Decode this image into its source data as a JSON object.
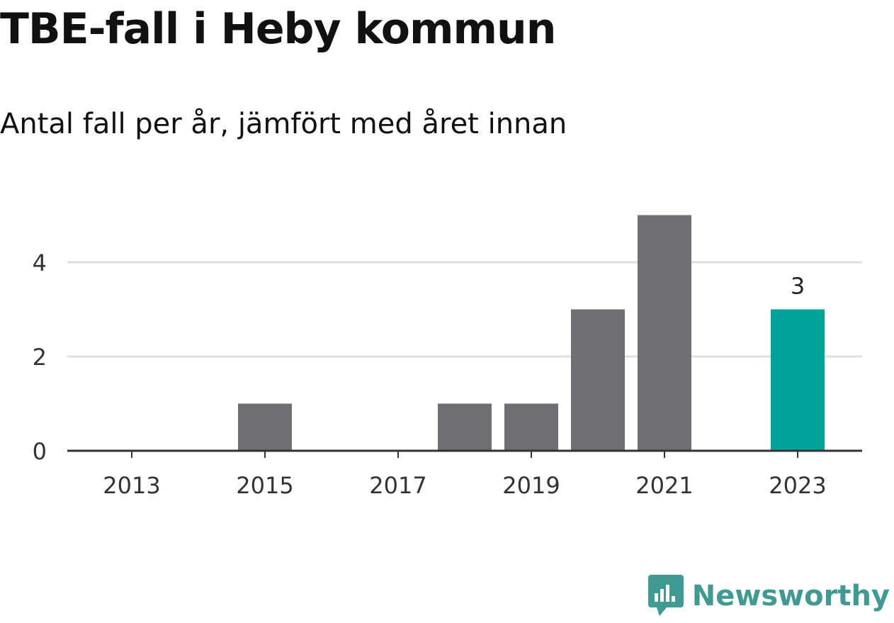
{
  "title": "TBE-fall i Heby kommun",
  "subtitle": "Antal fall per år, jämfört med året innan",
  "brand": {
    "name": "Newsworthy",
    "logo_icon": "chart-speech-bubble-icon",
    "color": "#3f9a94"
  },
  "chart_data": {
    "type": "bar",
    "title": "TBE-fall i Heby kommun",
    "subtitle": "Antal fall per år, jämfört med året innan",
    "xlabel": "",
    "ylabel": "",
    "categories": [
      2013,
      2014,
      2015,
      2016,
      2017,
      2018,
      2019,
      2020,
      2021,
      2022,
      2023
    ],
    "values": [
      0,
      0,
      1,
      0,
      0,
      1,
      1,
      3,
      5,
      0,
      3
    ],
    "x_ticks": [
      "2013",
      "2015",
      "2017",
      "2019",
      "2021",
      "2023"
    ],
    "y_ticks": [
      0,
      2,
      4
    ],
    "ylim": [
      0,
      5
    ],
    "grid": "horizontal",
    "highlight": {
      "category": 2023,
      "label": "3"
    },
    "colors": {
      "bar": "#6f6e73",
      "highlight": "#00a49a",
      "grid": "#dedede",
      "axis": "#333333"
    }
  }
}
